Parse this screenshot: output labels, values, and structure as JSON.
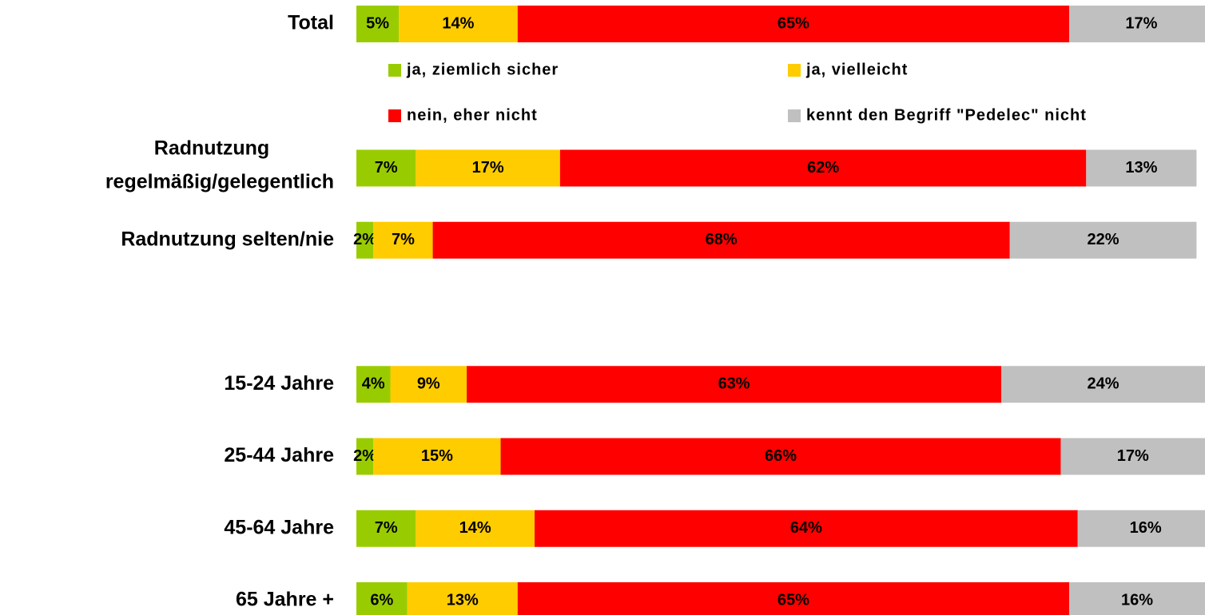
{
  "chart_data": {
    "type": "stacked_barh",
    "categories": [
      "Total",
      null,
      "Radnutzung regelmäßig/gelegentlich",
      "Radnutzung selten/nie",
      null,
      "15-24 Jahre",
      "25-44 Jahre",
      "45-64 Jahre",
      "65 Jahre +"
    ],
    "xlim": [
      0,
      100
    ],
    "series": [
      {
        "name": "ja, ziemlich sicher",
        "color": "#99cc00",
        "values": [
          5,
          null,
          7,
          2,
          null,
          4,
          2,
          7,
          6
        ],
        "value_labels": [
          "5%",
          null,
          "7%",
          "2%",
          null,
          "4%",
          "2%",
          "7%",
          "6%"
        ]
      },
      {
        "name": "ja, vielleicht",
        "color": "#ffcc00",
        "values": [
          14,
          null,
          17,
          7,
          null,
          9,
          15,
          14,
          13
        ],
        "value_labels": [
          "14%",
          null,
          "17%",
          "7%",
          null,
          "9%",
          "15%",
          "14%",
          "13%"
        ]
      },
      {
        "name": "nein, eher nicht",
        "color": "#ff0000",
        "values": [
          65,
          null,
          62,
          68,
          null,
          63,
          66,
          64,
          65
        ],
        "value_labels": [
          "65%",
          null,
          "62%",
          "68%",
          null,
          "63%",
          "66%",
          "64%",
          "65%"
        ]
      },
      {
        "name": "kennt den Begriff \"Pedelec\" nicht",
        "color": "#c0c0c0",
        "values": [
          17,
          null,
          13,
          22,
          null,
          24,
          17,
          16,
          16
        ],
        "value_labels": [
          "17%",
          null,
          "13%",
          "22%",
          null,
          "24%",
          "17%",
          "16%",
          "16%"
        ]
      }
    ]
  }
}
